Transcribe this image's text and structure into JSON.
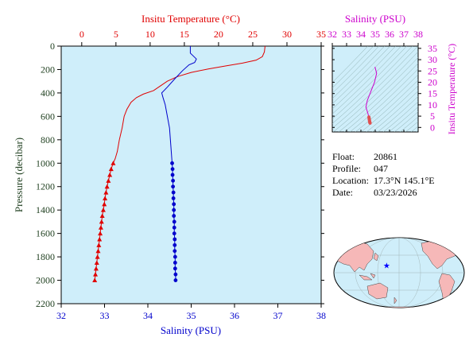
{
  "chart_data": [
    {
      "type": "line",
      "name_of_panel": "profile",
      "xlabel_top": "Insitu Temperature (°C)",
      "xlabel_bottom": "Salinity (PSU)",
      "ylabel": "Pressure (decibar)",
      "temperature_axis": {
        "range": [
          -3,
          35
        ],
        "ticks": [
          0,
          5,
          10,
          15,
          20,
          25,
          30,
          35
        ]
      },
      "salinity_axis": {
        "range": [
          32,
          38
        ],
        "ticks": [
          32,
          33,
          34,
          35,
          36,
          37,
          38
        ]
      },
      "pressure_axis": {
        "range": [
          0,
          2200
        ],
        "ticks": [
          0,
          200,
          400,
          600,
          800,
          1000,
          1200,
          1400,
          1600,
          1800,
          2000,
          2200
        ],
        "inverted": true
      },
      "temperature_series": {
        "color": "#e00000",
        "marker": "triangle",
        "line": [
          [
            26.8,
            0
          ],
          [
            26.7,
            50
          ],
          [
            26.4,
            90
          ],
          [
            25.5,
            120
          ],
          [
            23.5,
            145
          ],
          [
            21,
            170
          ],
          [
            18.5,
            195
          ],
          [
            16,
            225
          ],
          [
            14,
            260
          ],
          [
            12.5,
            300
          ],
          [
            11.5,
            340
          ],
          [
            10.5,
            380
          ],
          [
            9,
            410
          ],
          [
            8,
            440
          ],
          [
            7.2,
            480
          ],
          [
            6.6,
            540
          ],
          [
            6.2,
            600
          ],
          [
            5.9,
            700
          ],
          [
            5.5,
            800
          ],
          [
            5.2,
            900
          ],
          [
            4.9,
            960
          ],
          [
            4.6,
            1000
          ]
        ],
        "points": [
          [
            4.6,
            1000
          ],
          [
            4.3,
            1050
          ],
          [
            4.1,
            1100
          ],
          [
            3.9,
            1150
          ],
          [
            3.7,
            1200
          ],
          [
            3.55,
            1250
          ],
          [
            3.4,
            1300
          ],
          [
            3.3,
            1350
          ],
          [
            3.15,
            1400
          ],
          [
            3.0,
            1450
          ],
          [
            2.9,
            1500
          ],
          [
            2.8,
            1550
          ],
          [
            2.7,
            1600
          ],
          [
            2.6,
            1650
          ],
          [
            2.5,
            1700
          ],
          [
            2.4,
            1750
          ],
          [
            2.3,
            1800
          ],
          [
            2.2,
            1850
          ],
          [
            2.1,
            1900
          ],
          [
            2.0,
            1950
          ],
          [
            1.9,
            2000
          ]
        ]
      },
      "salinity_series": {
        "color": "#0000cc",
        "marker": "circle",
        "line": [
          [
            34.98,
            0
          ],
          [
            34.98,
            60
          ],
          [
            35.12,
            110
          ],
          [
            35.08,
            140
          ],
          [
            34.95,
            160
          ],
          [
            34.8,
            210
          ],
          [
            34.62,
            280
          ],
          [
            34.45,
            350
          ],
          [
            34.32,
            400
          ],
          [
            34.35,
            440
          ],
          [
            34.4,
            500
          ],
          [
            34.45,
            600
          ],
          [
            34.5,
            700
          ],
          [
            34.52,
            800
          ],
          [
            34.54,
            900
          ],
          [
            34.56,
            1000
          ]
        ],
        "points": [
          [
            34.56,
            1000
          ],
          [
            34.57,
            1050
          ],
          [
            34.57,
            1100
          ],
          [
            34.58,
            1150
          ],
          [
            34.58,
            1200
          ],
          [
            34.59,
            1250
          ],
          [
            34.59,
            1300
          ],
          [
            34.6,
            1350
          ],
          [
            34.6,
            1400
          ],
          [
            34.6,
            1450
          ],
          [
            34.61,
            1500
          ],
          [
            34.61,
            1550
          ],
          [
            34.61,
            1600
          ],
          [
            34.62,
            1650
          ],
          [
            34.62,
            1700
          ],
          [
            34.62,
            1750
          ],
          [
            34.63,
            1800
          ],
          [
            34.63,
            1850
          ],
          [
            34.63,
            1900
          ],
          [
            34.64,
            1950
          ],
          [
            34.64,
            2000
          ]
        ]
      }
    },
    {
      "type": "line",
      "name_of_panel": "ts-diagram",
      "xlabel": "Salinity (PSU)",
      "ylabel": "Insitu Temperature (°C)",
      "x_ticks": [
        32,
        33,
        34,
        35,
        36,
        37,
        38
      ],
      "xlim": [
        32,
        38
      ],
      "y_ticks": [
        0,
        5,
        10,
        15,
        20,
        25,
        30,
        35
      ],
      "ylim": [
        -2,
        36
      ],
      "ts_line": [
        [
          34.98,
          26.8
        ],
        [
          35.1,
          24
        ],
        [
          34.95,
          20
        ],
        [
          34.7,
          16
        ],
        [
          34.45,
          12
        ],
        [
          34.35,
          9
        ],
        [
          34.5,
          6
        ],
        [
          34.6,
          3
        ],
        [
          34.64,
          1.9
        ]
      ],
      "ts_points": [
        [
          34.56,
          4.6
        ],
        [
          34.57,
          4.1
        ],
        [
          34.58,
          3.7
        ],
        [
          34.59,
          3.4
        ],
        [
          34.6,
          3.0
        ],
        [
          34.61,
          2.6
        ],
        [
          34.62,
          2.3
        ],
        [
          34.63,
          2.1
        ],
        [
          34.64,
          1.9
        ]
      ],
      "line_color": "#cc00cc",
      "point_color": "#e05050"
    }
  ],
  "float_info": {
    "float_label": "Float:",
    "float_value": "20861",
    "profile_label": "Profile:",
    "profile_value": "047",
    "location_label": "Location:",
    "location_value": "17.3°N  145.1°E",
    "date_label": "Date:",
    "date_value": "03/23/2026"
  },
  "map": {
    "ocean_color": "#cfeefa",
    "land_color": "#f6b8b8",
    "marker_lat": 17.3,
    "marker_lon": 145.1,
    "marker_color": "#0000ff"
  },
  "colors": {
    "plot_background": "#cfeefa",
    "temperature": "#e00000",
    "salinity": "#0000cc",
    "axis_dark": "#1f3f1f",
    "ts_axis": "#cc00cc"
  }
}
